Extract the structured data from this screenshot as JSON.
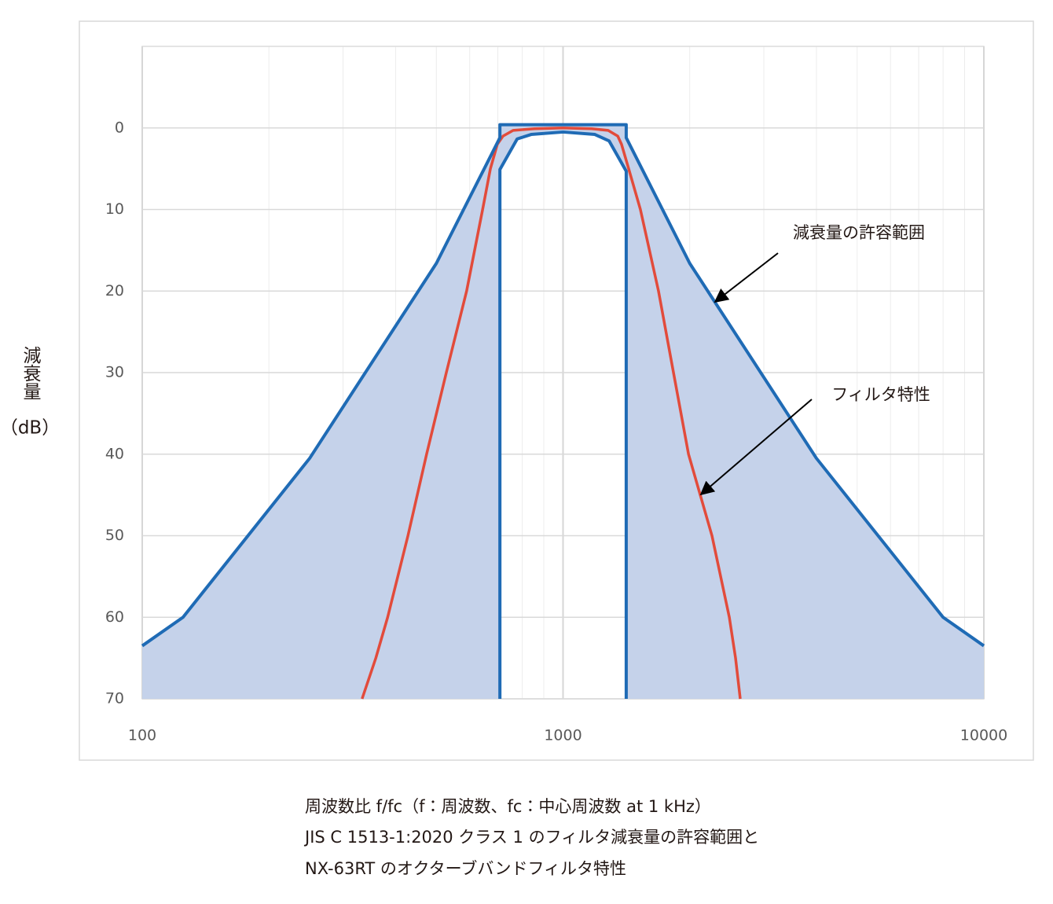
{
  "chart_data": {
    "type": "line",
    "ylabel": "減衰量",
    "ylabel_unit": "（dB）",
    "xscale": "log",
    "xlim": [
      100,
      10000
    ],
    "xticks": [
      100,
      1000,
      10000
    ],
    "xminorticks": [
      200,
      300,
      400,
      500,
      600,
      700,
      800,
      900,
      2000,
      3000,
      4000,
      5000,
      6000,
      7000,
      8000,
      9000
    ],
    "ylim": [
      -10,
      70
    ],
    "yticks": [
      0,
      10,
      20,
      30,
      40,
      50,
      60,
      70
    ],
    "y_inverted": true,
    "grid": true,
    "fill_color": "#c5d2ea",
    "series": [
      {
        "color": "#1f6bb5",
        "x": [
          100,
          125,
          250,
          500,
          707.9,
          707.9,
          1413,
          1413,
          2000,
          4000,
          8000,
          10000
        ],
        "values": [
          63.5,
          60,
          40.5,
          16.6,
          1.2,
          -0.4,
          -0.4,
          1.2,
          16.6,
          40.5,
          60,
          63.5
        ]
      },
      {
        "color": "#1f6bb5",
        "x": [
          707.9,
          707.9,
          778,
          840,
          1000,
          1190,
          1287,
          1413,
          1413
        ],
        "values": [
          70,
          5.1,
          1.35,
          0.8,
          0.5,
          0.8,
          1.6,
          5.3,
          70
        ]
      },
      {
        "color": "#e24b3b",
        "x": [
          333,
          359,
          383,
          428,
          474,
          528,
          590,
          644,
          672,
          698,
          720,
          761,
          855,
          1000,
          1170,
          1280,
          1349,
          1377,
          1432,
          1527,
          1686,
          1830,
          1987,
          2259,
          2484,
          2570,
          2637
        ],
        "values": [
          70,
          65,
          60,
          50,
          40,
          30,
          20,
          10,
          5,
          2,
          1,
          0.3,
          0.1,
          0,
          0.1,
          0.3,
          1,
          2,
          5,
          10,
          20,
          30,
          40,
          50,
          60,
          65,
          70
        ]
      }
    ],
    "annotations": [
      "減衰量の許容範囲",
      "フィルタ特性"
    ],
    "caption": [
      "周波数比 f/fc（f：周波数、fc：中心周波数 at 1 kHz）",
      "JIS C 1513-1:2020 クラス 1 のフィルタ減衰量の許容範囲と",
      "NX-63RT のオクターブバンドフィルタ特性"
    ]
  }
}
